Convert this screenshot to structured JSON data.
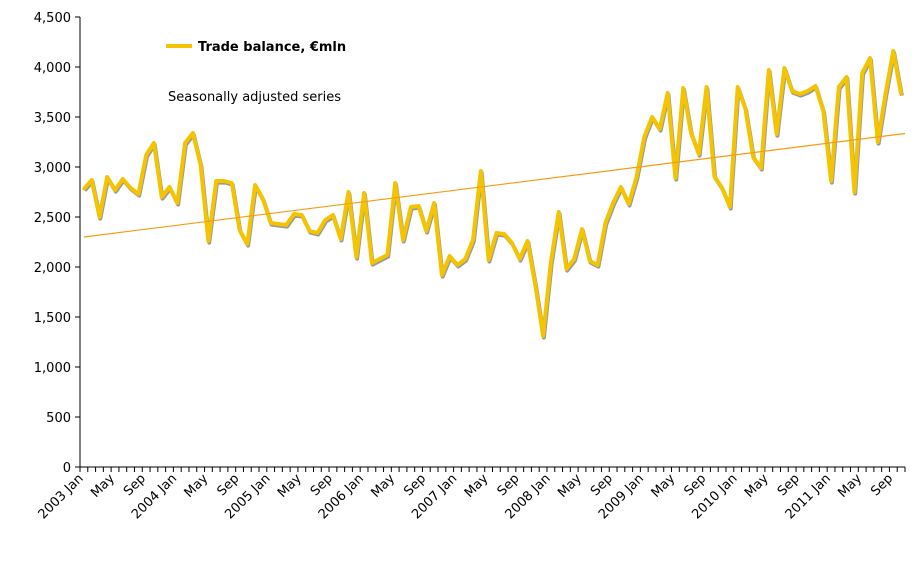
{
  "chart_data": {
    "type": "line",
    "title": "",
    "xlabel": "",
    "ylabel": "",
    "ylim": [
      0,
      4500
    ],
    "yticks": [
      0,
      500,
      1000,
      1500,
      2000,
      2500,
      3000,
      3500,
      4000,
      4500
    ],
    "ytick_labels": [
      "0",
      "500",
      "1,000",
      "1,500",
      "2,000",
      "2,500",
      "3,000",
      "3,500",
      "4,000",
      "4,500"
    ],
    "grid": false,
    "legend": {
      "position": "top-left",
      "entries": [
        "Trade balance, €mln"
      ]
    },
    "annotation": "Seasonally adjusted series",
    "x_tick_labels": [
      {
        "index": 0,
        "label": "2003 Jan"
      },
      {
        "index": 4,
        "label": "May"
      },
      {
        "index": 8,
        "label": "Sep"
      },
      {
        "index": 12,
        "label": "2004 Jan"
      },
      {
        "index": 16,
        "label": "May"
      },
      {
        "index": 20,
        "label": "Sep"
      },
      {
        "index": 24,
        "label": "2005 Jan"
      },
      {
        "index": 28,
        "label": "May"
      },
      {
        "index": 32,
        "label": "Sep"
      },
      {
        "index": 36,
        "label": "2006 Jan"
      },
      {
        "index": 40,
        "label": "May"
      },
      {
        "index": 44,
        "label": "Sep"
      },
      {
        "index": 48,
        "label": "2007 Jan"
      },
      {
        "index": 52,
        "label": "May"
      },
      {
        "index": 56,
        "label": "Sep"
      },
      {
        "index": 60,
        "label": "2008 Jan"
      },
      {
        "index": 64,
        "label": "May"
      },
      {
        "index": 68,
        "label": "Sep"
      },
      {
        "index": 72,
        "label": "2009 Jan"
      },
      {
        "index": 76,
        "label": "May"
      },
      {
        "index": 80,
        "label": "Sep"
      },
      {
        "index": 84,
        "label": "2010 Jan"
      },
      {
        "index": 88,
        "label": "May"
      },
      {
        "index": 92,
        "label": "Sep"
      },
      {
        "index": 96,
        "label": "2011 Jan"
      },
      {
        "index": 100,
        "label": "May"
      },
      {
        "index": 104,
        "label": "Sep"
      }
    ],
    "series": [
      {
        "name": "Trade balance, €mln",
        "color": "#F5C400",
        "shadow_color": "#999999",
        "values": [
          2780,
          2870,
          2500,
          2900,
          2770,
          2880,
          2790,
          2730,
          3120,
          3240,
          2700,
          2800,
          2640,
          3240,
          3340,
          3020,
          2260,
          2860,
          2860,
          2840,
          2370,
          2230,
          2820,
          2680,
          2440,
          2430,
          2420,
          2530,
          2520,
          2360,
          2340,
          2470,
          2520,
          2280,
          2750,
          2100,
          2740,
          2040,
          2080,
          2120,
          2840,
          2270,
          2600,
          2610,
          2360,
          2640,
          1920,
          2110,
          2020,
          2080,
          2270,
          2960,
          2070,
          2340,
          2330,
          2240,
          2080,
          2260,
          1820,
          1310,
          2050,
          2550,
          1980,
          2080,
          2380,
          2060,
          2020,
          2440,
          2640,
          2800,
          2630,
          2900,
          3300,
          3500,
          3380,
          3740,
          2890,
          3790,
          3340,
          3130,
          3800,
          2910,
          2790,
          2600,
          3800,
          3580,
          3100,
          2990,
          3970,
          3330,
          3990,
          3760,
          3730,
          3760,
          3810,
          3560,
          2860,
          3800,
          3900,
          2750,
          3940,
          4090,
          3250,
          3730,
          4160,
          3730
        ]
      },
      {
        "name": "Linear trend",
        "color": "#F39C12",
        "trend_start": 2300,
        "trend_end": 3335
      }
    ]
  }
}
